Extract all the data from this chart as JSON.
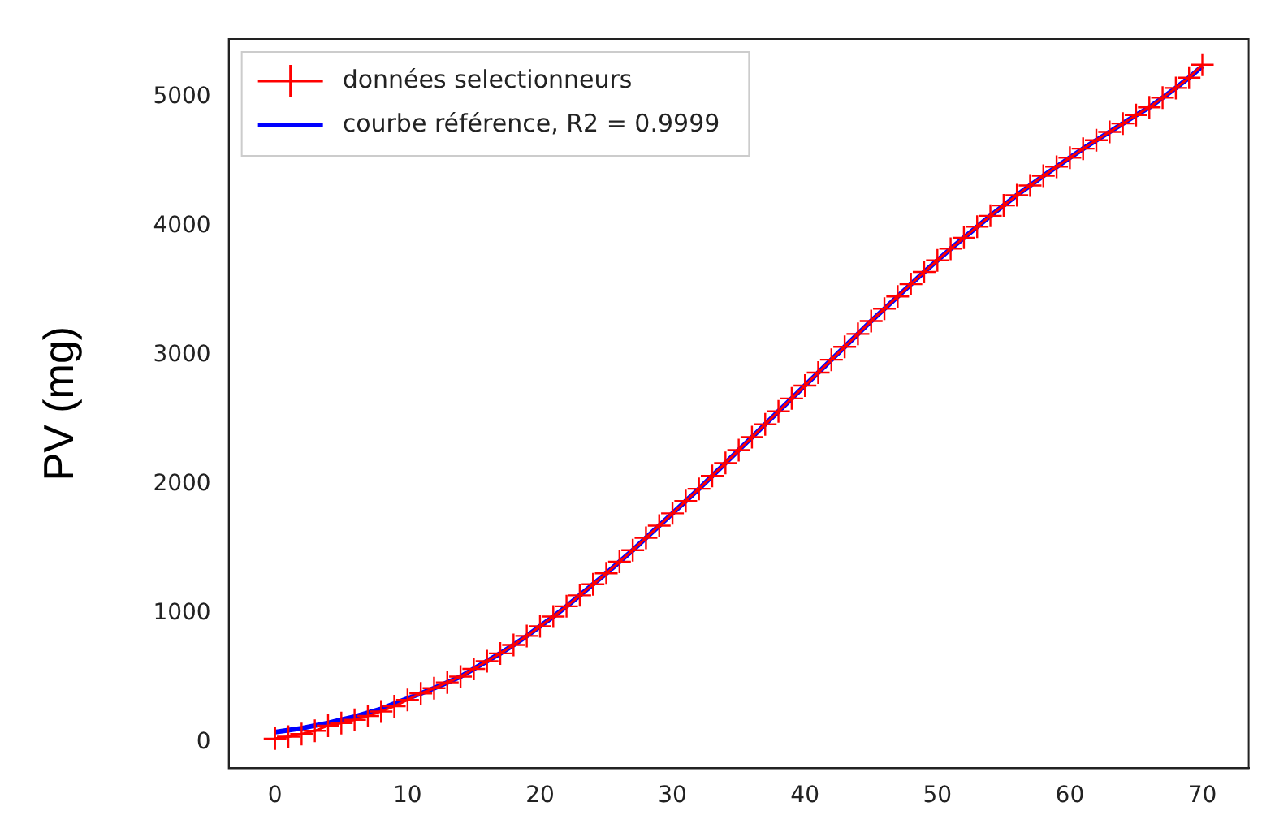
{
  "chart_data": {
    "type": "line",
    "ylabel": "PV (mg)",
    "x": [
      0,
      1,
      2,
      3,
      4,
      5,
      6,
      7,
      8,
      9,
      10,
      11,
      12,
      13,
      14,
      15,
      16,
      17,
      18,
      19,
      20,
      21,
      22,
      23,
      24,
      25,
      26,
      27,
      28,
      29,
      30,
      31,
      32,
      33,
      34,
      35,
      36,
      37,
      38,
      39,
      40,
      41,
      42,
      43,
      44,
      45,
      46,
      47,
      48,
      49,
      50,
      51,
      52,
      53,
      54,
      55,
      56,
      57,
      58,
      59,
      60,
      61,
      62,
      63,
      64,
      65,
      66,
      67,
      68,
      69,
      70
    ],
    "series": [
      {
        "name": "données selectionneurs",
        "color": "#ff0000",
        "marker": "cross",
        "values": [
          30,
          45,
          65,
          90,
          130,
          150,
          175,
          205,
          240,
          280,
          330,
          380,
          420,
          465,
          510,
          570,
          630,
          690,
          755,
          825,
          900,
          975,
          1055,
          1140,
          1225,
          1310,
          1400,
          1490,
          1585,
          1680,
          1775,
          1870,
          1965,
          2065,
          2165,
          2265,
          2365,
          2465,
          2565,
          2665,
          2765,
          2865,
          2965,
          3065,
          3165,
          3265,
          3360,
          3455,
          3550,
          3645,
          3735,
          3825,
          3910,
          3995,
          4080,
          4160,
          4240,
          4315,
          4390,
          4460,
          4530,
          4600,
          4665,
          4730,
          4795,
          4860,
          4920,
          4995,
          5070,
          5150,
          5250
        ]
      },
      {
        "name": "courbe référence, R2 = 0.9999",
        "color": "#0000ff",
        "marker": "none",
        "values": [
          80,
          95,
          110,
          130,
          150,
          175,
          200,
          230,
          260,
          300,
          340,
          380,
          420,
          465,
          510,
          570,
          630,
          690,
          755,
          825,
          900,
          975,
          1055,
          1140,
          1225,
          1310,
          1400,
          1490,
          1585,
          1680,
          1775,
          1870,
          1965,
          2065,
          2165,
          2265,
          2365,
          2465,
          2565,
          2665,
          2765,
          2865,
          2965,
          3065,
          3165,
          3265,
          3360,
          3455,
          3550,
          3645,
          3735,
          3825,
          3910,
          3995,
          4080,
          4160,
          4240,
          4315,
          4390,
          4460,
          4530,
          4600,
          4665,
          4730,
          4795,
          4860,
          4920,
          4995,
          5070,
          5150,
          5240
        ]
      }
    ],
    "xlim": [
      -3.5,
      73.5
    ],
    "xticks": [
      0,
      10,
      20,
      30,
      40,
      50,
      60,
      70
    ],
    "ylim": [
      -200,
      5450
    ],
    "yticks": [
      0,
      1000,
      2000,
      3000,
      4000,
      5000
    ],
    "grid": false,
    "legend": "top left",
    "line_style": "solid"
  }
}
